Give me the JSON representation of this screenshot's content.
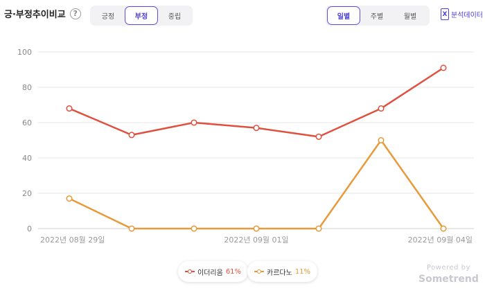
{
  "header": {
    "title": "긍·부정추이비교",
    "help_icon": "?"
  },
  "sentiment_tabs": [
    {
      "label": "긍정",
      "active": false
    },
    {
      "label": "부정",
      "active": true
    },
    {
      "label": "중립",
      "active": false
    }
  ],
  "period_tabs": [
    {
      "label": "일별",
      "active": true
    },
    {
      "label": "주별",
      "active": false
    },
    {
      "label": "월별",
      "active": false
    }
  ],
  "export": {
    "icon_label": "X",
    "label": "분석데이터"
  },
  "colors": {
    "accent": "#4b3fd8",
    "series_a": "#e0503e",
    "series_b": "#e89a3a",
    "grid": "#e4e4e4"
  },
  "chart_data": {
    "type": "line",
    "x": [
      "2022-08-29",
      "2022-08-30",
      "2022-08-31",
      "2022-09-01",
      "2022-09-02",
      "2022-09-03",
      "2022-09-04"
    ],
    "x_tick_labels": [
      "2022년 08월 29일",
      "2022년 09월 01일",
      "2022년 09월 04일"
    ],
    "ylim": [
      0,
      100
    ],
    "yticks": [
      0,
      20,
      40,
      60,
      80,
      100
    ],
    "grid": true,
    "legend_position": "bottom",
    "series": [
      {
        "name": "이더리움",
        "values": [
          68,
          53,
          60,
          57,
          52,
          68,
          91
        ],
        "percent": "61%"
      },
      {
        "name": "카르다노",
        "values": [
          17,
          0,
          0,
          0,
          0,
          50,
          0
        ],
        "percent": "11%"
      }
    ]
  },
  "powered": {
    "line1": "Powered by",
    "line2": "Sometrend"
  }
}
